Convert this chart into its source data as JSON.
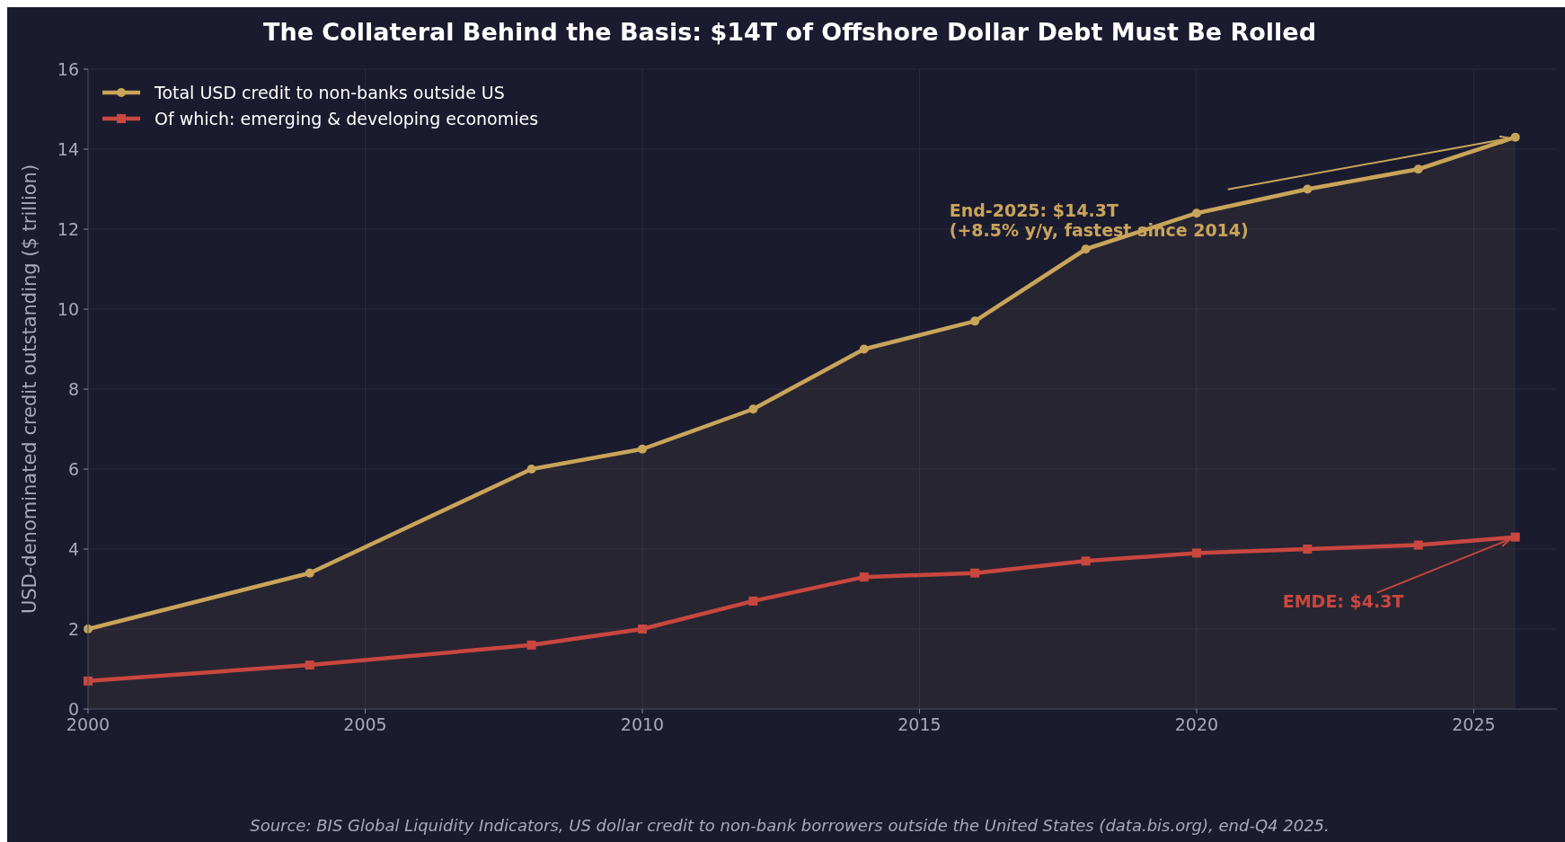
{
  "chart_data": {
    "type": "line",
    "title": "The Collateral Behind the Basis: $14T of Offshore Dollar Debt Must Be Rolled",
    "ylabel": "USD-denominated credit outstanding ($ trillion)",
    "x": [
      2000,
      2004,
      2008,
      2010,
      2012,
      2014,
      2016,
      2018,
      2020,
      2022,
      2024,
      2025.75
    ],
    "series": [
      {
        "name": "Total USD credit to non-banks outside US",
        "type": "area",
        "color": "#c9a55a",
        "marker": "circle",
        "values": [
          2.0,
          3.4,
          6.0,
          6.5,
          7.5,
          9.0,
          9.7,
          11.5,
          12.4,
          13.0,
          13.5,
          14.3
        ]
      },
      {
        "name": "Of which: emerging & developing economies",
        "color": "#c8473f",
        "marker": "square",
        "values": [
          0.7,
          1.1,
          1.6,
          2.0,
          2.7,
          3.3,
          3.4,
          3.7,
          3.9,
          4.0,
          4.1,
          4.3
        ]
      }
    ],
    "xlim": [
      2000,
      2026.5
    ],
    "xticks": [
      2000,
      2005,
      2010,
      2015,
      2020,
      2025
    ],
    "ylim": [
      0,
      16
    ],
    "yticks": [
      0,
      2,
      4,
      6,
      8,
      10,
      12,
      14,
      16
    ],
    "grid": true,
    "legend": "top left",
    "line_style": "solid",
    "annotations": [
      {
        "text": "End-2025: $14.3T\n(+8.5% y/y, fastest since 2014)",
        "x": 2025.75,
        "y": 14.3
      },
      {
        "text": "EMDE: $4.3T",
        "x": 2025.75,
        "y": 4.3
      },
      "Source: BIS Global Liquidity Indicators, US dollar credit to non-bank borrowers outside the United States (data.bis.org), end-Q4 2025."
    ]
  }
}
